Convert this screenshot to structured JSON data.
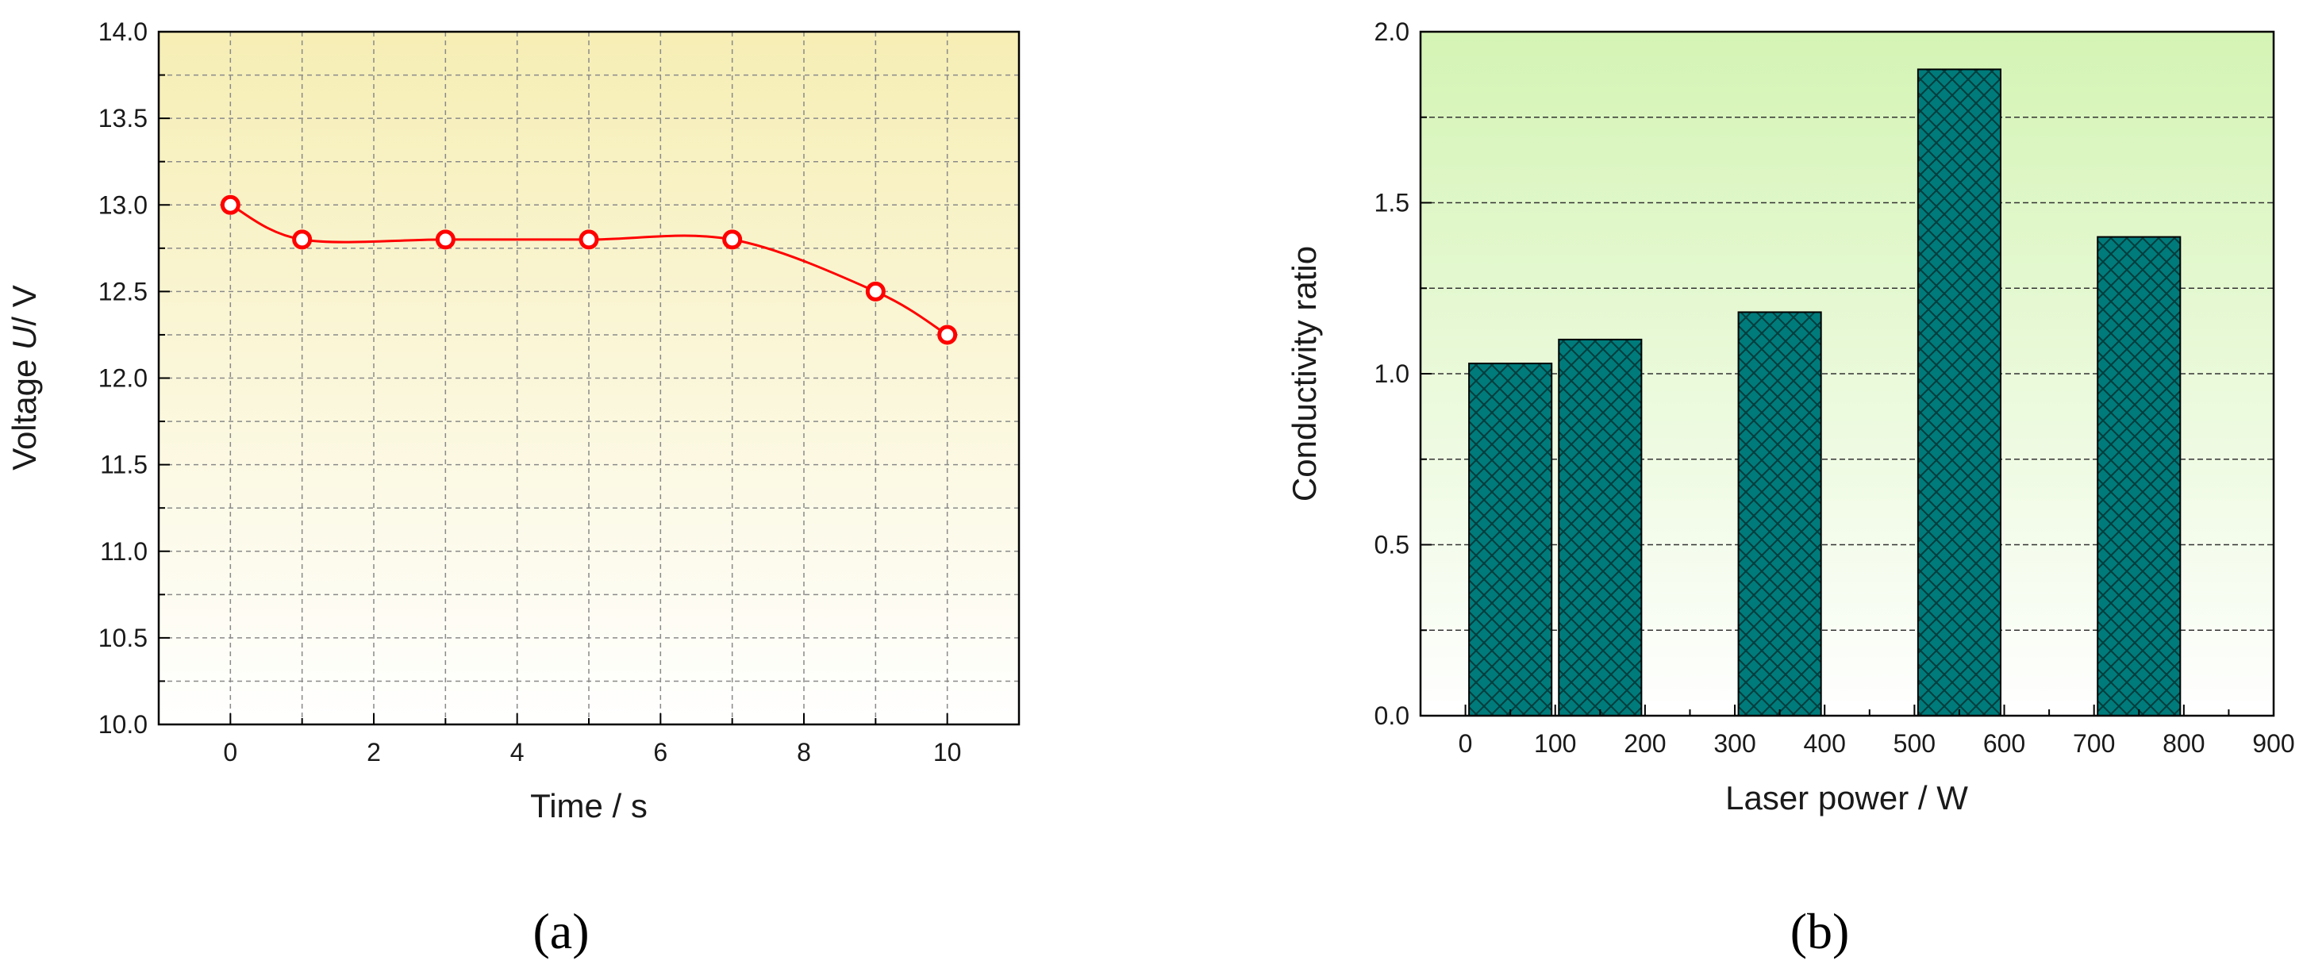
{
  "panel_labels": {
    "a": "(a)",
    "b": "(b)"
  },
  "chart_data": [
    {
      "type": "line",
      "panel": "a",
      "xlabel": "Time / s",
      "ylabel_parts": [
        "Voltage ",
        "U",
        "/ V"
      ],
      "xlim": [
        -1,
        11
      ],
      "ylim": [
        10.0,
        14.0
      ],
      "xticks": [
        0,
        2,
        4,
        6,
        8,
        10
      ],
      "yticks": [
        10.0,
        10.5,
        11.0,
        11.5,
        12.0,
        12.5,
        13.0,
        13.5,
        14.0
      ],
      "xtick_labels": [
        "0",
        "2",
        "4",
        "6",
        "8",
        "10"
      ],
      "ytick_labels": [
        "10.0",
        "10.5",
        "11.0",
        "11.5",
        "12.0",
        "12.5",
        "13.0",
        "13.5",
        "14.0"
      ],
      "grid": true,
      "series": [
        {
          "x": [
            0,
            1,
            3,
            5,
            7,
            9,
            10
          ],
          "y": [
            13.0,
            12.8,
            12.8,
            12.8,
            12.8,
            12.5,
            12.25
          ]
        }
      ],
      "colors": {
        "line": "#ff0000",
        "marker_stroke": "#ff0000",
        "marker_fill": "#ffffff",
        "bg_top": "#f6eeb4",
        "bg_bottom": "#ffffff"
      }
    },
    {
      "type": "bar",
      "panel": "b",
      "xlabel": "Laser power / W",
      "ylabel": "Conductivity ratio",
      "xlim": [
        -50,
        900
      ],
      "ylim": [
        0.0,
        2.0
      ],
      "xticks": [
        0,
        100,
        200,
        300,
        400,
        500,
        600,
        700,
        800,
        900
      ],
      "xtick_labels": [
        "0",
        "100",
        "200",
        "300",
        "400",
        "500",
        "600",
        "700",
        "800",
        "900"
      ],
      "yticks": [
        0.0,
        0.5,
        1.0,
        1.5,
        2.0
      ],
      "ytick_labels": [
        "0.0",
        "0.5",
        "1.0",
        "1.5",
        "2.0"
      ],
      "grid": true,
      "categories": [
        "100",
        "200",
        "400",
        "600",
        "800"
      ],
      "x": [
        50,
        150,
        350,
        550,
        750
      ],
      "values": [
        1.03,
        1.1,
        1.18,
        1.89,
        1.4
      ],
      "colors": {
        "bar": "#007b7b",
        "hatch": "#003c3c",
        "bg_top": "#d4f4b4",
        "bg_bottom": "#ffffff"
      }
    }
  ]
}
